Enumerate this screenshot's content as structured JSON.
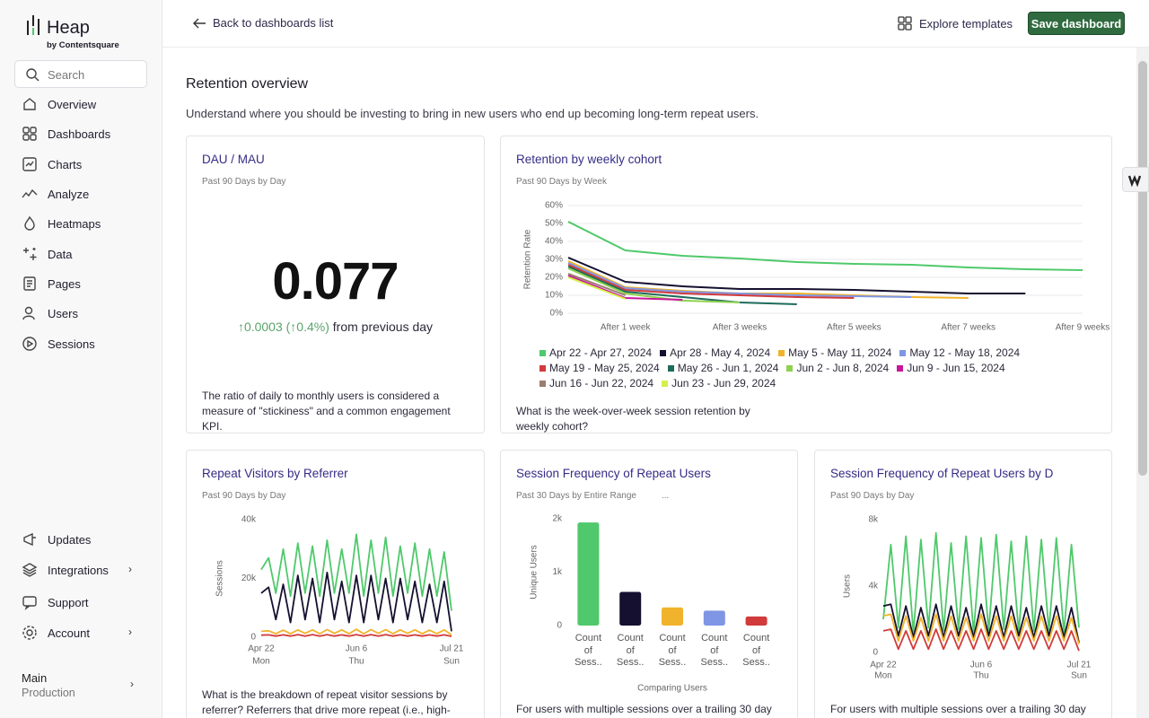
{
  "sidebar": {
    "brand": "Heap",
    "brand_sub": "by Contentsquare",
    "search": "Search",
    "nav": [
      "Overview",
      "Dashboards",
      "Charts",
      "Analyze",
      "Heatmaps",
      "Data",
      "Pages",
      "Users",
      "Sessions"
    ],
    "bottom_nav": [
      "Updates",
      "Integrations",
      "Support",
      "Account"
    ],
    "workspace": "Main",
    "environment": "Production"
  },
  "topbar": {
    "back": "Back to dashboards list",
    "explore": "Explore templates",
    "save": "Save dashboard"
  },
  "page": {
    "title": "Retention overview",
    "description": "Understand where you should be investing to bring in new users who end up becoming long-term repeat users."
  },
  "kpi": {
    "title": "DAU / MAU",
    "subtitle": "Past 90 Days by Day",
    "value": 0.077,
    "change": "↑0.0003 (↑0.4%)",
    "change_suffix": "from previous day",
    "caption": "The ratio of daily to monthly users is considered a measure of \"stickiness\" and a common engagement KPI."
  },
  "chart_data": [
    {
      "type": "line",
      "title": "Retention by weekly cohort",
      "subtitle": "Past 90 Days by Week",
      "caption": "What is the week-over-week session retention by weekly cohort?",
      "y_label": "Retention Rate",
      "categories": [
        null,
        "After 1 week",
        null,
        "After 3 weeks",
        null,
        "After 5 weeks",
        null,
        "After 7 weeks",
        null,
        "After 9 weeks"
      ],
      "ylim": [
        0,
        60
      ],
      "yticks": [
        {
          "value": 0,
          "label": "0%"
        },
        {
          "value": 10,
          "label": "10%"
        },
        {
          "value": 20,
          "label": "20%"
        },
        {
          "value": 30,
          "label": "30%"
        },
        {
          "value": 40,
          "label": "40%"
        },
        {
          "value": 50,
          "label": "50%"
        },
        {
          "value": 60,
          "label": "60%"
        }
      ],
      "grid": true,
      "legend": true,
      "series": [
        {
          "name": "Apr 22 - Apr 27, 2024",
          "color": "#4fc96b",
          "values": [
            51,
            35,
            32,
            30.5,
            28.5,
            27.5,
            27,
            25.5,
            24.5,
            24
          ]
        },
        {
          "name": "Apr 28 - May 4, 2024",
          "color": "#15102f",
          "values": [
            31,
            17.5,
            15,
            13.5,
            13.5,
            13,
            12,
            11,
            11,
            null
          ]
        },
        {
          "name": "May 5 - May 11, 2024",
          "color": "#f1b32b",
          "values": [
            29,
            14.5,
            12.5,
            11,
            11,
            10,
            9,
            8.5,
            null,
            null
          ]
        },
        {
          "name": "May 12 - May 18, 2024",
          "color": "#7f96e4",
          "values": [
            28,
            14,
            12,
            11,
            10,
            9.5,
            9,
            null,
            null,
            null
          ]
        },
        {
          "name": "May 19 - May 25, 2024",
          "color": "#d13b3b",
          "values": [
            27,
            13,
            11,
            10,
            9,
            8.5,
            null,
            null,
            null,
            null
          ]
        },
        {
          "name": "May 26 - Jun 1, 2024",
          "color": "#1d6b5a",
          "values": [
            26,
            12,
            9,
            6,
            5,
            null,
            null,
            null,
            null,
            null
          ]
        },
        {
          "name": "Jun 2 - Jun 8, 2024",
          "color": "#8fd14f",
          "values": [
            25,
            11,
            7,
            6,
            null,
            null,
            null,
            null,
            null,
            null
          ]
        },
        {
          "name": "Jun 9 - Jun 15, 2024",
          "color": "#c8179b",
          "values": [
            21,
            8.5,
            7.5,
            null,
            null,
            null,
            null,
            null,
            null,
            null
          ]
        },
        {
          "name": "Jun 16 - Jun 22, 2024",
          "color": "#9c7c70",
          "values": [
            22,
            10,
            null,
            null,
            null,
            null,
            null,
            null,
            null,
            null
          ]
        },
        {
          "name": "Jun 23 - Jun 29, 2024",
          "color": "#d7ef4a",
          "values": [
            20,
            8,
            null,
            null,
            null,
            null,
            null,
            null,
            null,
            null
          ]
        }
      ]
    },
    {
      "type": "line",
      "title": "Repeat Visitors by Referrer",
      "subtitle": "Past 90 Days by Day",
      "caption": "What is the breakdown of repeat visitor sessions by referrer? Referrers that drive more repeat (i.e., high-value)",
      "y_label": "Sessions",
      "categories": [
        "Apr 22",
        null,
        null,
        null,
        null,
        null,
        null,
        null,
        null,
        null,
        null,
        null,
        null,
        "Jun 6",
        null,
        null,
        null,
        null,
        null,
        null,
        null,
        null,
        null,
        null,
        null,
        null,
        "Jul 21"
      ],
      "x_weekdays": [
        "Mon",
        null,
        null,
        null,
        null,
        null,
        null,
        null,
        null,
        null,
        null,
        null,
        null,
        "Thu",
        null,
        null,
        null,
        null,
        null,
        null,
        null,
        null,
        null,
        null,
        null,
        null,
        "Sun"
      ],
      "ylim": [
        0,
        40000
      ],
      "yticks": [
        0,
        {
          "value": 20000,
          "label": "20k"
        },
        {
          "value": 40000,
          "label": "40k"
        }
      ],
      "grid": false,
      "series": [
        {
          "color": "#4fc96b",
          "values": [
            23000,
            27000,
            15000,
            30000,
            14000,
            32000,
            15000,
            31000,
            14000,
            33000,
            15000,
            30000,
            15000,
            35000,
            14000,
            33000,
            15000,
            34000,
            14000,
            31000,
            15000,
            32000,
            14000,
            30000,
            14000,
            29000,
            9000
          ]
        },
        {
          "color": "#15102f",
          "values": [
            15000,
            17000,
            6000,
            18000,
            5000,
            21000,
            6000,
            20000,
            5000,
            22000,
            6000,
            19000,
            5000,
            21000,
            5000,
            21000,
            6000,
            20000,
            5000,
            20000,
            6000,
            19000,
            5000,
            18000,
            5000,
            19000,
            2000
          ]
        },
        {
          "color": "#f1b32b",
          "values": [
            2000,
            2200,
            1200,
            2400,
            1200,
            2500,
            1300,
            2500,
            1200,
            2600,
            1300,
            2500,
            1200,
            2700,
            1200,
            2600,
            1300,
            2600,
            1200,
            2500,
            1300,
            2500,
            1200,
            2400,
            1200,
            2500,
            800
          ]
        },
        {
          "color": "#d13b3b",
          "values": [
            700,
            800,
            400,
            800,
            400,
            900,
            400,
            900,
            400,
            900,
            400,
            800,
            400,
            900,
            400,
            900,
            400,
            900,
            400,
            800,
            400,
            800,
            400,
            800,
            400,
            800,
            300
          ]
        }
      ]
    },
    {
      "type": "bar",
      "title": "Session Frequency of Repeat Users",
      "subtitle": "Past 30 Days by Entire Range",
      "subtitle_extra": "...",
      "caption": "For users with multiple sessions over a trailing 30 day",
      "y_label": "Unique Users",
      "x_label": "Comparing Users",
      "categories": [
        "Count of Sess..",
        "Count of Sess..",
        "Count of Sess..",
        "Count of Sess..",
        "Count of Sess.."
      ],
      "values": [
        1930,
        630,
        340,
        280,
        170
      ],
      "colors": [
        "#4fc96b",
        "#15102f",
        "#f1b32b",
        "#7f96e4",
        "#d13b3b"
      ],
      "ylim": [
        0,
        2000
      ],
      "yticks": [
        0,
        {
          "value": 1000,
          "label": "1k"
        },
        {
          "value": 2000,
          "label": "2k"
        }
      ],
      "grid": false
    },
    {
      "type": "line",
      "title": "Session Frequency of Repeat Users by D",
      "subtitle": "Past 90 Days by Day",
      "caption": "For users with multiple sessions over a trailing 30 day",
      "y_label": "Users",
      "categories": [
        "Apr 22",
        null,
        null,
        null,
        null,
        null,
        null,
        null,
        null,
        null,
        null,
        null,
        null,
        "Jun 6",
        null,
        null,
        null,
        null,
        null,
        null,
        null,
        null,
        null,
        null,
        null,
        null,
        "Jul 21"
      ],
      "x_weekdays": [
        "Mon",
        null,
        null,
        null,
        null,
        null,
        null,
        null,
        null,
        null,
        null,
        null,
        null,
        "Thu",
        null,
        null,
        null,
        null,
        null,
        null,
        null,
        null,
        null,
        null,
        null,
        null,
        "Sun"
      ],
      "ylim": [
        0,
        8000
      ],
      "yticks": [
        0,
        {
          "value": 4000,
          "label": "4k"
        },
        {
          "value": 8000,
          "label": "8k"
        }
      ],
      "grid": false,
      "series": [
        {
          "color": "#4fc96b",
          "values": [
            2000,
            6500,
            1500,
            7000,
            1200,
            6800,
            1500,
            7200,
            1300,
            6600,
            1400,
            7000,
            1200,
            6900,
            1300,
            7100,
            1400,
            6700,
            1200,
            7000,
            1300,
            6800,
            1300,
            6900,
            1200,
            6500,
            1500
          ]
        },
        {
          "color": "#15102f",
          "values": [
            2800,
            2900,
            1000,
            2800,
            900,
            2700,
            1000,
            2900,
            900,
            2800,
            1000,
            2700,
            900,
            2900,
            1000,
            2800,
            900,
            2800,
            1000,
            2700,
            900,
            2800,
            1000,
            2800,
            900,
            2700,
            600
          ]
        },
        {
          "color": "#f1b32b",
          "values": [
            2200,
            2300,
            700,
            2200,
            700,
            2100,
            700,
            2300,
            700,
            2200,
            700,
            2100,
            700,
            2300,
            700,
            2200,
            700,
            2200,
            700,
            2100,
            700,
            2200,
            700,
            2200,
            700,
            2100,
            500
          ]
        },
        {
          "color": "#d13b3b",
          "values": [
            1300,
            1400,
            200,
            1300,
            200,
            1300,
            200,
            1400,
            200,
            1300,
            200,
            1300,
            200,
            1400,
            200,
            1300,
            200,
            1300,
            200,
            1300,
            200,
            1300,
            200,
            1300,
            200,
            1300,
            100
          ]
        }
      ]
    }
  ]
}
